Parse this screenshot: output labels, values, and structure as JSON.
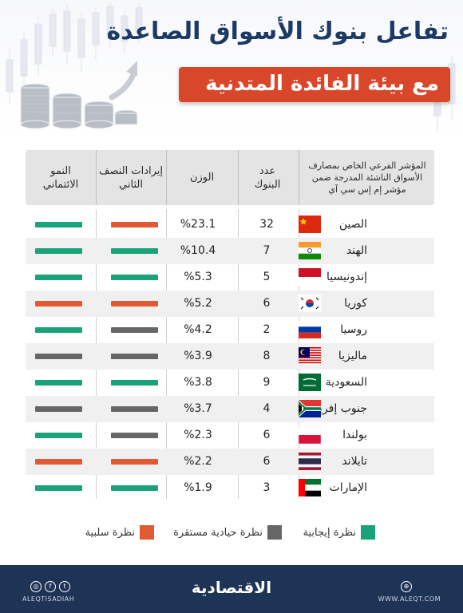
{
  "title_line1": "تفاعل بنوك الأسواق الصاعدة",
  "title_line2": "مع بيئة الفائدة المتدنية",
  "colors": {
    "positive": "#1aa37a",
    "neutral": "#666666",
    "negative": "#e05a33",
    "navy": "#1e3457",
    "accent": "#d9472b"
  },
  "headers": {
    "index": "المؤشر الفرعي الخاص بمصارف الأسواق الناشئة المدرجة ضمن مؤشر إم إس سي آي",
    "banks": "عدد البنوك",
    "weight": "الوزن",
    "revenue": "إيرادات النصف الثاني",
    "credit": "النمو الائتماني"
  },
  "rows": [
    {
      "country": "الصين",
      "flag": "china-flag",
      "banks": "32",
      "weight": "%23.1",
      "revenue": "negative",
      "credit": "positive"
    },
    {
      "country": "الهند",
      "flag": "india-flag",
      "banks": "7",
      "weight": "%10.4",
      "revenue": "positive",
      "credit": "positive"
    },
    {
      "country": "إندونيسيا",
      "flag": "indonesia-flag",
      "banks": "5",
      "weight": "%5.3",
      "revenue": "positive",
      "credit": "positive"
    },
    {
      "country": "كوريا",
      "flag": "korea-flag",
      "banks": "6",
      "weight": "%5.2",
      "revenue": "negative",
      "credit": "negative"
    },
    {
      "country": "روسيا",
      "flag": "russia-flag",
      "banks": "2",
      "weight": "%4.2",
      "revenue": "neutral",
      "credit": "positive"
    },
    {
      "country": "ماليزيا",
      "flag": "malaysia-flag",
      "banks": "8",
      "weight": "%3.9",
      "revenue": "neutral",
      "credit": "neutral"
    },
    {
      "country": "السعودية",
      "flag": "saudi-flag",
      "banks": "9",
      "weight": "%3.8",
      "revenue": "positive",
      "credit": "positive"
    },
    {
      "country": "جنوب إفريقيا",
      "flag": "south-africa-flag",
      "banks": "4",
      "weight": "%3.7",
      "revenue": "neutral",
      "credit": "neutral"
    },
    {
      "country": "بولندا",
      "flag": "poland-flag",
      "banks": "6",
      "weight": "%2.3",
      "revenue": "neutral",
      "credit": "positive"
    },
    {
      "country": "تايلاند",
      "flag": "thailand-flag",
      "banks": "6",
      "weight": "%2.2",
      "revenue": "negative",
      "credit": "negative"
    },
    {
      "country": "الإمارات",
      "flag": "uae-flag",
      "banks": "3",
      "weight": "%1.9",
      "revenue": "positive",
      "credit": "positive"
    }
  ],
  "legend": {
    "positive": "نظرة إيجابية",
    "neutral": "نظرة حيادية مستقرة",
    "negative": "نظرة سلبية"
  },
  "footer": {
    "logo": "الاقتصادية",
    "handle": "ALEQTISADIAH",
    "website": "WWW.ALEQT.COM",
    "icons": [
      "instagram-icon",
      "facebook-icon",
      "twitter-icon",
      "globe-icon"
    ]
  }
}
